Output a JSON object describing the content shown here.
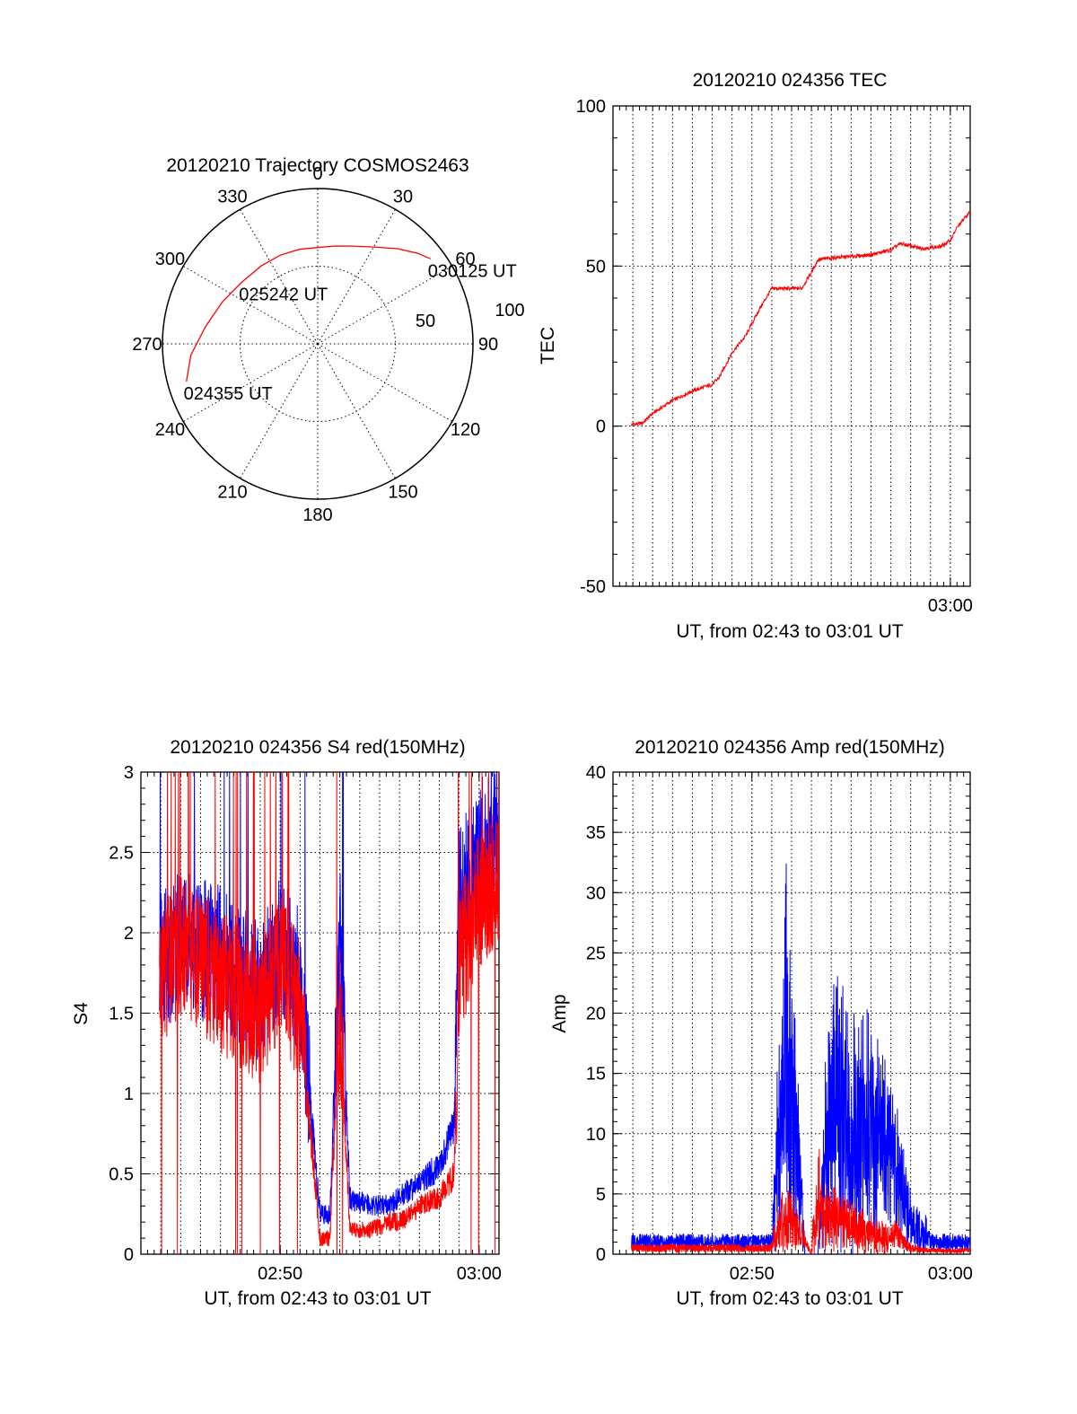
{
  "chart_data": [
    {
      "id": "polar",
      "type": "scatter",
      "title": "20120210 Trajectory COSMOS2463",
      "azimuth_labels": [
        "0",
        "30",
        "60",
        "90",
        "120",
        "150",
        "180",
        "210",
        "240",
        "270",
        "300",
        "330"
      ],
      "radial_labels": [
        "50",
        "100"
      ],
      "radial_range": [
        0,
        100
      ],
      "grid": true,
      "track_color": "#ff0000",
      "track": {
        "azimuth_deg": [
          254,
          265,
          279,
          294,
          309,
          324,
          337,
          349,
          0,
          10,
          20,
          30,
          40,
          48,
          53
        ],
        "zenith_deg": [
          88,
          82,
          73,
          67,
          63,
          62,
          62,
          62,
          62,
          64,
          67,
          72,
          80,
          87,
          91
        ]
      },
      "annotations": [
        {
          "text": "024355 UT",
          "azimuth_deg": 254,
          "zenith_deg": 88
        },
        {
          "text": "025242 UT",
          "azimuth_deg": 309,
          "zenith_deg": 63
        },
        {
          "text": "030125 UT",
          "azimuth_deg": 53,
          "zenith_deg": 91
        }
      ]
    },
    {
      "id": "tec",
      "type": "line",
      "title": "20120210 024356 TEC",
      "xlabel": "UT, from 02:43 to 03:01 UT",
      "ylabel": "TEC",
      "xlim": [
        "02:43:00",
        "03:01:00"
      ],
      "ylim": [
        -50,
        100
      ],
      "yticks": [
        "-50",
        "0",
        "50",
        "100"
      ],
      "xticks": [
        "03:00"
      ],
      "grid": true,
      "series": [
        {
          "color": "#ff0000",
          "x": [
            "02:43:56",
            "02:44:30",
            "02:45:00",
            "02:46:00",
            "02:47:00",
            "02:48:00",
            "02:48:20",
            "02:49:00",
            "02:49:40",
            "02:50:20",
            "02:51:00",
            "02:51:30",
            "02:52:30",
            "02:53:00",
            "02:53:20",
            "02:54:00",
            "02:55:00",
            "02:56:00",
            "02:57:00",
            "02:57:30",
            "02:58:30",
            "02:59:30",
            "03:00:00",
            "03:00:20",
            "03:01:00"
          ],
          "y": [
            0.5,
            1,
            4,
            8,
            11,
            13,
            15,
            23,
            28,
            36,
            43,
            43,
            43,
            48,
            52,
            52.5,
            53,
            53.5,
            55,
            57,
            55.5,
            56,
            58,
            62,
            67
          ]
        }
      ]
    },
    {
      "id": "s4",
      "type": "line",
      "title": "20120210 024356 S4 red(150MHz)",
      "xlabel": "UT, from 02:43 to 03:01 UT",
      "ylabel": "S4",
      "xlim": [
        "02:43:00",
        "03:01:00"
      ],
      "ylim": [
        0,
        3
      ],
      "yticks": [
        "0",
        "0.5",
        "1",
        "1.5",
        "2",
        "2.5",
        "3"
      ],
      "xticks": [
        "02:50",
        "03:00"
      ],
      "grid": true,
      "series": [
        {
          "color": "#0000ff",
          "x": [
            "02:43:56",
            "02:45:00",
            "02:46:00",
            "02:47:00",
            "02:48:00",
            "02:49:00",
            "02:50:00",
            "02:51:00",
            "02:52:00",
            "02:52:30",
            "02:53:00",
            "02:53:30",
            "02:54:30",
            "02:55:30",
            "02:56:00",
            "02:57:00",
            "02:58:00",
            "02:58:45",
            "02:59:00",
            "03:00:00",
            "03:01:00"
          ],
          "y": [
            1.8,
            1.95,
            1.9,
            1.85,
            1.75,
            1.6,
            1.9,
            1.7,
            0.25,
            0.25,
            2.0,
            0.35,
            0.3,
            0.3,
            0.35,
            0.45,
            0.55,
            0.8,
            2.2,
            2.5,
            2.7
          ]
        },
        {
          "color": "#ff0000",
          "x": [
            "02:43:56",
            "02:45:00",
            "02:46:00",
            "02:47:00",
            "02:48:00",
            "02:49:00",
            "02:50:00",
            "02:51:00",
            "02:52:00",
            "02:52:30",
            "02:53:00",
            "02:53:30",
            "02:54:30",
            "02:55:30",
            "02:56:00",
            "02:57:00",
            "02:58:00",
            "02:58:45",
            "02:59:00",
            "03:00:00",
            "03:01:00"
          ],
          "y": [
            1.7,
            1.9,
            1.8,
            1.7,
            1.6,
            1.5,
            1.8,
            1.5,
            0.1,
            0.1,
            1.5,
            0.15,
            0.15,
            0.2,
            0.2,
            0.3,
            0.35,
            0.5,
            1.8,
            2.2,
            2.4
          ]
        }
      ]
    },
    {
      "id": "amp",
      "type": "line",
      "title": "20120210 024356 Amp red(150MHz)",
      "xlabel": "UT, from 02:43 to 03:01 UT",
      "ylabel": "Amp",
      "xlim": [
        "02:43:00",
        "03:01:00"
      ],
      "ylim": [
        0,
        40
      ],
      "yticks": [
        "0",
        "5",
        "10",
        "15",
        "20",
        "25",
        "30",
        "35",
        "40"
      ],
      "xticks": [
        "02:50",
        "03:00"
      ],
      "grid": true,
      "series": [
        {
          "color": "#0000ff",
          "x": [
            "02:43:56",
            "02:46:00",
            "02:48:00",
            "02:51:00",
            "02:51:40",
            "02:52:10",
            "02:52:40",
            "02:53:00",
            "02:53:20",
            "02:53:40",
            "02:54:10",
            "02:55:00",
            "02:56:00",
            "02:57:00",
            "02:58:00",
            "02:59:00",
            "03:00:00",
            "03:01:00"
          ],
          "y": [
            1,
            1,
            1,
            1,
            30,
            20,
            0,
            0,
            0,
            14,
            22,
            19,
            17,
            14,
            5,
            1,
            1,
            1
          ]
        },
        {
          "color": "#ff0000",
          "x": [
            "02:43:56",
            "02:46:00",
            "02:48:00",
            "02:51:00",
            "02:51:40",
            "02:52:10",
            "02:52:40",
            "02:53:00",
            "02:53:20",
            "02:53:40",
            "02:54:10",
            "02:55:00",
            "02:56:00",
            "02:57:00",
            "02:58:00",
            "02:59:00",
            "03:00:00",
            "03:01:00"
          ],
          "y": [
            0.5,
            0.5,
            0.5,
            0.5,
            6,
            4,
            1,
            0,
            8,
            5,
            5,
            4,
            3,
            2,
            0.5,
            0.3,
            0.3,
            0.3
          ]
        }
      ]
    }
  ]
}
